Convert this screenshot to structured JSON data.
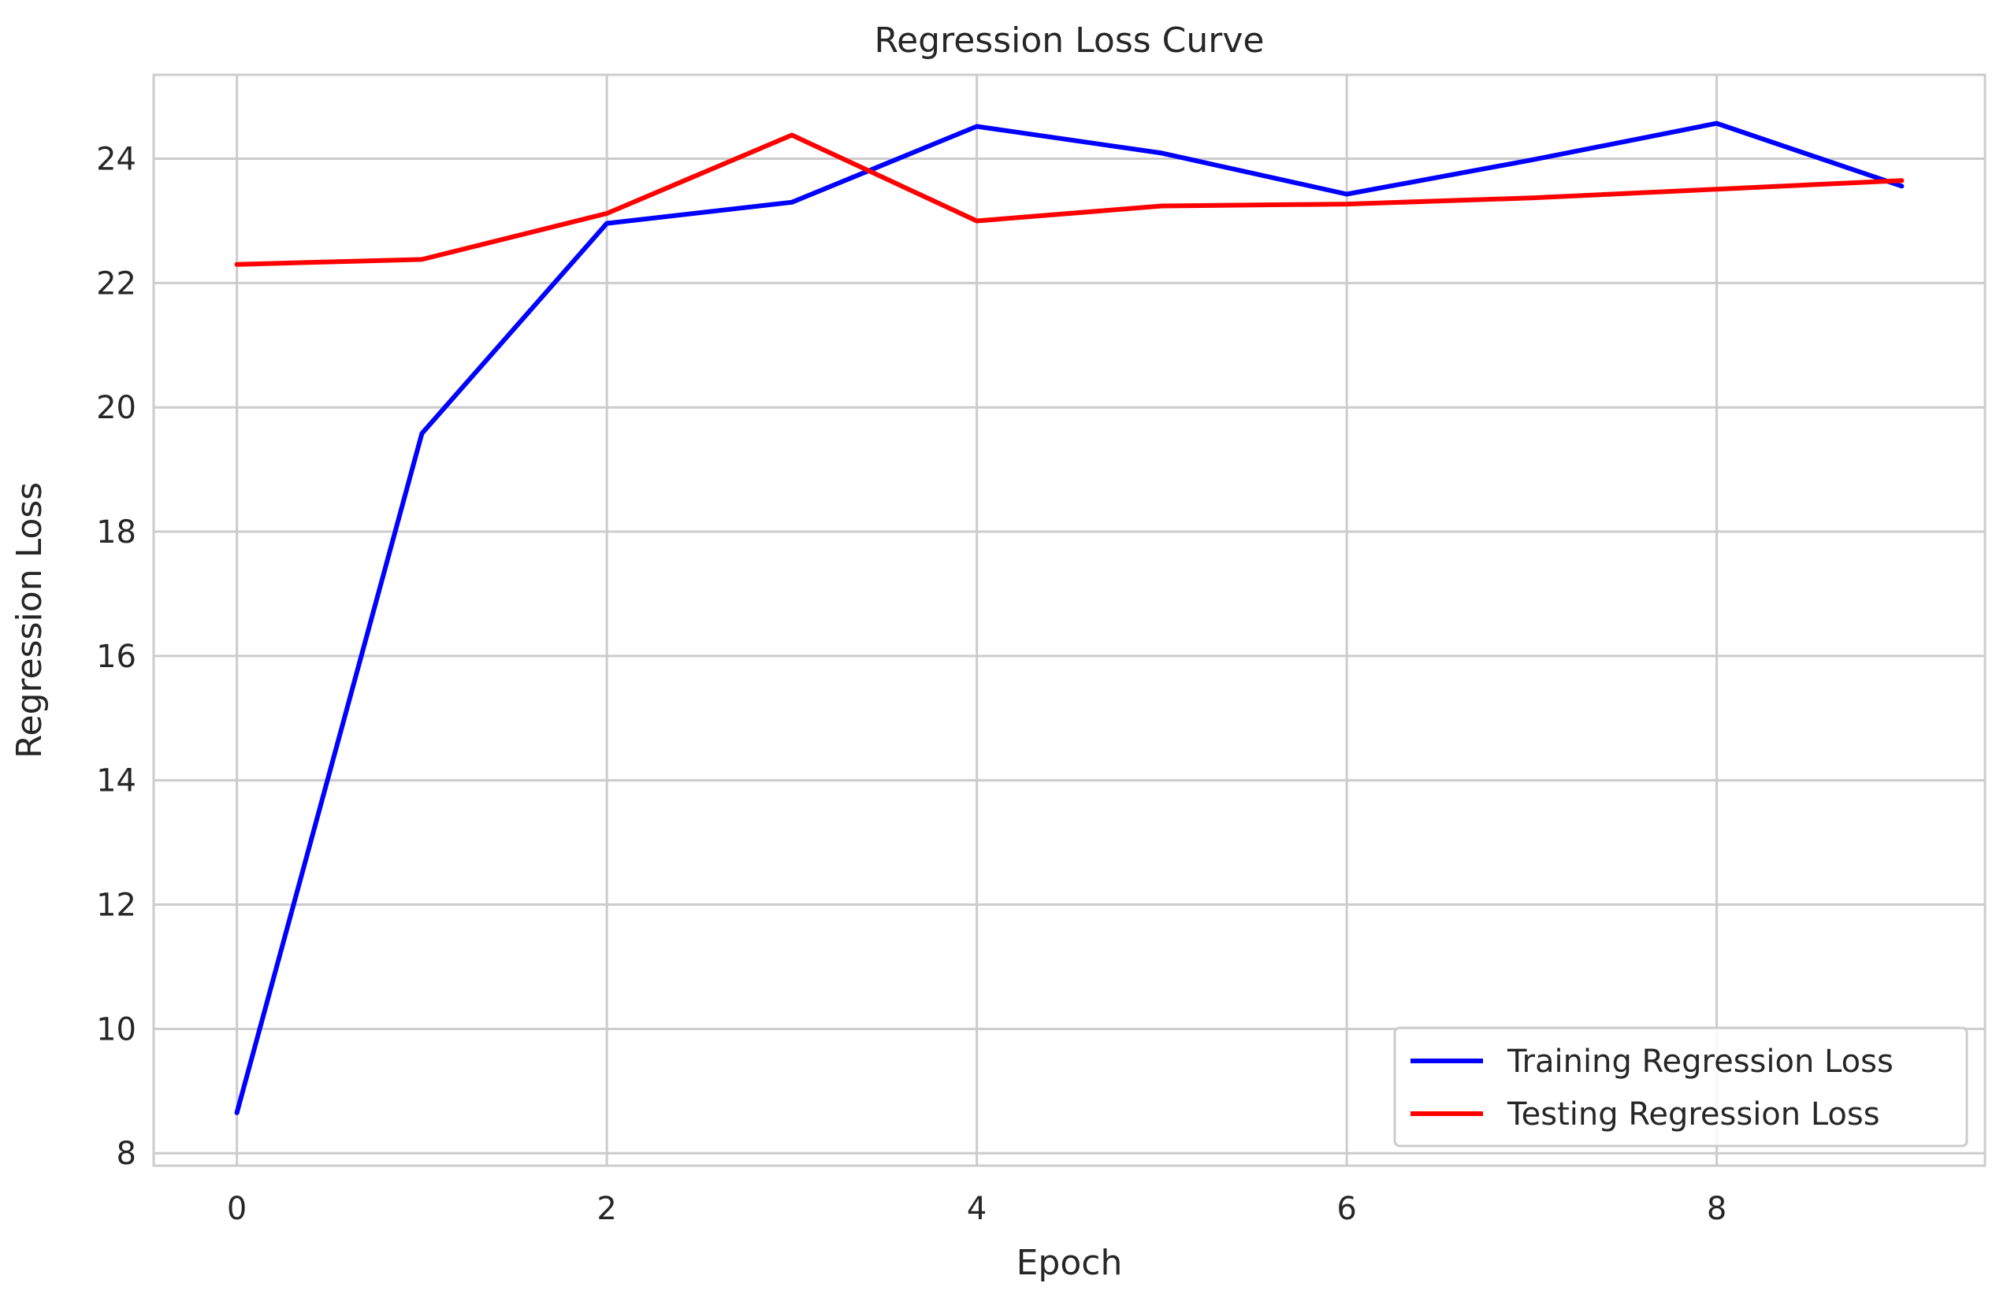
{
  "chart_data": {
    "type": "line",
    "title": "Regression Loss Curve",
    "xlabel": "Epoch",
    "ylabel": "Regression Loss",
    "x": [
      0,
      1,
      2,
      3,
      4,
      5,
      6,
      7,
      8,
      9
    ],
    "xlim": [
      -0.45,
      9.45
    ],
    "ylim": [
      7.8,
      25.35
    ],
    "xticks": [
      0,
      2,
      4,
      6,
      8
    ],
    "yticks": [
      8,
      10,
      12,
      14,
      16,
      18,
      20,
      22,
      24
    ],
    "grid": true,
    "legend_position": "lower-right",
    "series": [
      {
        "name": "Training Regression Loss",
        "color": "#0000ff",
        "values": [
          8.65,
          19.58,
          22.96,
          23.3,
          24.52,
          24.09,
          23.43,
          23.98,
          24.57,
          23.56
        ]
      },
      {
        "name": "Testing Regression Loss",
        "color": "#ff0000",
        "values": [
          22.3,
          22.38,
          23.12,
          24.38,
          23.0,
          23.24,
          23.27,
          23.37,
          23.51,
          23.65
        ]
      }
    ]
  }
}
